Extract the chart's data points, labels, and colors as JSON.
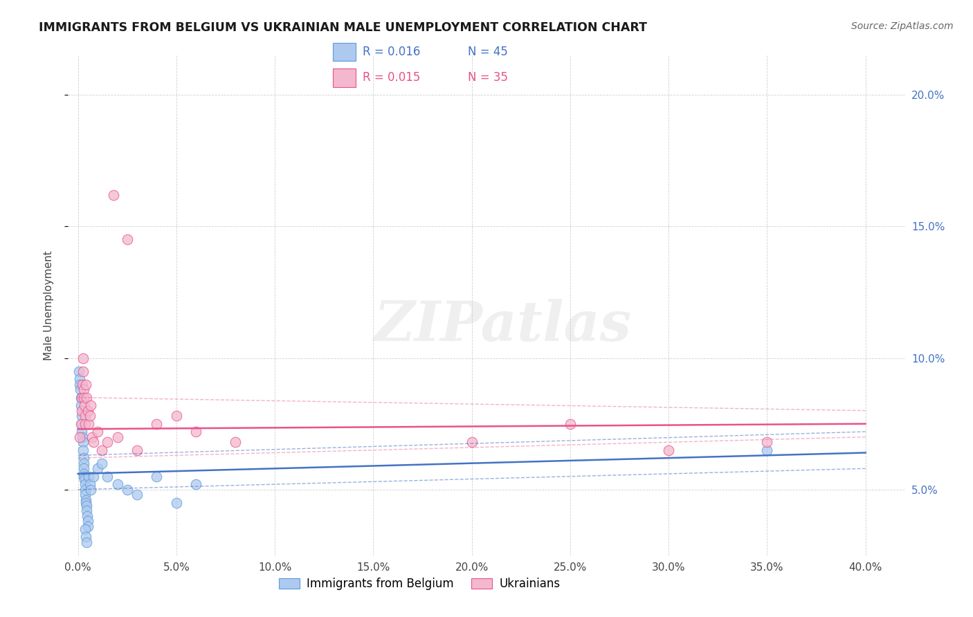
{
  "title": "IMMIGRANTS FROM BELGIUM VS UKRAINIAN MALE UNEMPLOYMENT CORRELATION CHART",
  "source": "Source: ZipAtlas.com",
  "ylabel": "Male Unemployment",
  "xlim": [
    -0.5,
    42.0
  ],
  "ylim": [
    2.5,
    21.5
  ],
  "x_tick_vals": [
    0,
    5,
    10,
    15,
    20,
    25,
    30,
    35,
    40
  ],
  "y_tick_vals": [
    5,
    10,
    15,
    20
  ],
  "legend_blue_r": "R = 0.016",
  "legend_blue_n": "N = 45",
  "legend_pink_r": "R = 0.015",
  "legend_pink_n": "N = 35",
  "blue_fill": "#AEC9F0",
  "blue_edge": "#5B9BD5",
  "pink_fill": "#F4B8CE",
  "pink_edge": "#E8528A",
  "blue_line": "#4472C4",
  "pink_line": "#E8528A",
  "right_axis_color": "#4472C4",
  "watermark": "ZIPatlas",
  "watermark_color": "#CCCCCC",
  "bg_color": "#FFFFFF",
  "grid_color": "#BBBBBB",
  "blue_scatter": [
    [
      0.05,
      9.5
    ],
    [
      0.08,
      9.2
    ],
    [
      0.1,
      9.0
    ],
    [
      0.12,
      8.8
    ],
    [
      0.15,
      8.5
    ],
    [
      0.15,
      8.2
    ],
    [
      0.18,
      7.8
    ],
    [
      0.2,
      7.5
    ],
    [
      0.2,
      7.2
    ],
    [
      0.22,
      7.0
    ],
    [
      0.25,
      6.8
    ],
    [
      0.25,
      6.5
    ],
    [
      0.28,
      6.2
    ],
    [
      0.28,
      6.0
    ],
    [
      0.3,
      5.8
    ],
    [
      0.3,
      5.6
    ],
    [
      0.3,
      5.5
    ],
    [
      0.32,
      5.4
    ],
    [
      0.35,
      5.2
    ],
    [
      0.35,
      5.0
    ],
    [
      0.38,
      4.8
    ],
    [
      0.4,
      4.6
    ],
    [
      0.4,
      4.5
    ],
    [
      0.42,
      4.4
    ],
    [
      0.45,
      4.2
    ],
    [
      0.48,
      4.0
    ],
    [
      0.5,
      3.8
    ],
    [
      0.5,
      3.6
    ],
    [
      0.55,
      5.5
    ],
    [
      0.6,
      5.2
    ],
    [
      0.65,
      5.0
    ],
    [
      0.8,
      5.5
    ],
    [
      1.0,
      5.8
    ],
    [
      1.2,
      6.0
    ],
    [
      1.5,
      5.5
    ],
    [
      2.0,
      5.2
    ],
    [
      2.5,
      5.0
    ],
    [
      3.0,
      4.8
    ],
    [
      4.0,
      5.5
    ],
    [
      5.0,
      4.5
    ],
    [
      6.0,
      5.2
    ],
    [
      0.35,
      3.5
    ],
    [
      0.4,
      3.2
    ],
    [
      0.45,
      3.0
    ],
    [
      35.0,
      6.5
    ]
  ],
  "pink_scatter": [
    [
      0.1,
      7.0
    ],
    [
      0.15,
      7.5
    ],
    [
      0.18,
      8.0
    ],
    [
      0.2,
      8.5
    ],
    [
      0.22,
      9.0
    ],
    [
      0.25,
      9.5
    ],
    [
      0.25,
      10.0
    ],
    [
      0.28,
      8.8
    ],
    [
      0.3,
      8.5
    ],
    [
      0.32,
      8.2
    ],
    [
      0.35,
      7.8
    ],
    [
      0.38,
      7.5
    ],
    [
      0.4,
      9.0
    ],
    [
      0.45,
      8.5
    ],
    [
      0.5,
      8.0
    ],
    [
      0.55,
      7.5
    ],
    [
      0.6,
      7.8
    ],
    [
      0.65,
      8.2
    ],
    [
      0.7,
      7.0
    ],
    [
      0.8,
      6.8
    ],
    [
      1.0,
      7.2
    ],
    [
      1.2,
      6.5
    ],
    [
      1.5,
      6.8
    ],
    [
      2.0,
      7.0
    ],
    [
      3.0,
      6.5
    ],
    [
      4.0,
      7.5
    ],
    [
      5.0,
      7.8
    ],
    [
      6.0,
      7.2
    ],
    [
      8.0,
      6.8
    ],
    [
      1.8,
      16.2
    ],
    [
      2.5,
      14.5
    ],
    [
      20.0,
      6.8
    ],
    [
      25.0,
      7.5
    ],
    [
      30.0,
      6.5
    ],
    [
      35.0,
      6.8
    ]
  ],
  "blue_trend_start": 5.6,
  "blue_trend_end": 6.4,
  "pink_trend_start": 7.3,
  "pink_trend_end": 7.5,
  "blue_ci_upper_start": 6.3,
  "blue_ci_upper_end": 7.2,
  "blue_ci_lower_start": 5.0,
  "blue_ci_lower_end": 5.8,
  "pink_ci_upper_start": 8.5,
  "pink_ci_upper_end": 8.0,
  "pink_ci_lower_start": 6.2,
  "pink_ci_lower_end": 7.0
}
